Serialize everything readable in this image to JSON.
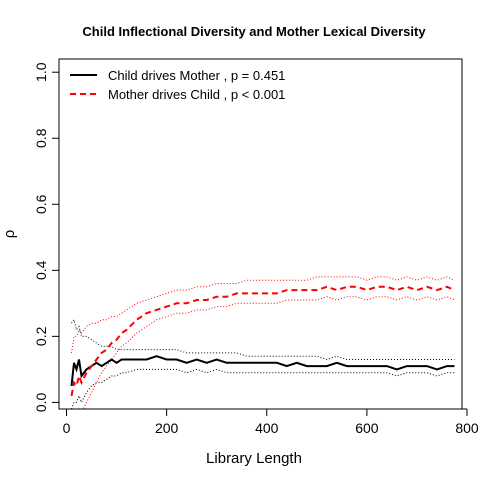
{
  "chart_data": {
    "type": "line",
    "title": "Child Inflectional Diversity and Mother Lexical Diversity",
    "xlabel": "Library Length",
    "ylabel": "ρ",
    "xlim": [
      -15,
      790
    ],
    "ylim": [
      -0.02,
      1.04
    ],
    "xticks": [
      0,
      200,
      400,
      600,
      800
    ],
    "yticks": [
      0.0,
      0.2,
      0.4,
      0.6,
      0.8,
      1.0
    ],
    "xtick_labels": [
      "0",
      "200",
      "400",
      "600",
      "800"
    ],
    "ytick_labels": [
      "0.0",
      "0.2",
      "0.4",
      "0.6",
      "0.8",
      "1.0"
    ],
    "grid": false,
    "legend_position": "top-left",
    "series": [
      {
        "name": "Child drives Mother , p = 0.451",
        "color": "#000000",
        "line_style": "solid",
        "bands": "dotted",
        "x": [
          10,
          15,
          20,
          25,
          30,
          40,
          50,
          60,
          70,
          80,
          90,
          100,
          110,
          120,
          140,
          160,
          180,
          200,
          220,
          240,
          260,
          280,
          300,
          320,
          340,
          360,
          380,
          400,
          420,
          440,
          460,
          480,
          500,
          520,
          540,
          560,
          580,
          600,
          620,
          640,
          660,
          680,
          700,
          720,
          740,
          760,
          775
        ],
        "y": [
          0.05,
          0.12,
          0.1,
          0.13,
          0.08,
          0.1,
          0.11,
          0.12,
          0.11,
          0.12,
          0.13,
          0.12,
          0.13,
          0.13,
          0.13,
          0.13,
          0.14,
          0.13,
          0.13,
          0.12,
          0.13,
          0.12,
          0.13,
          0.12,
          0.12,
          0.12,
          0.12,
          0.12,
          0.12,
          0.11,
          0.12,
          0.11,
          0.11,
          0.11,
          0.12,
          0.11,
          0.11,
          0.11,
          0.11,
          0.11,
          0.1,
          0.11,
          0.11,
          0.11,
          0.1,
          0.11,
          0.11
        ],
        "lower": [
          -0.02,
          0.0,
          0.0,
          0.02,
          0.0,
          0.03,
          0.05,
          0.06,
          0.06,
          0.07,
          0.08,
          0.08,
          0.09,
          0.09,
          0.1,
          0.1,
          0.1,
          0.1,
          0.1,
          0.09,
          0.1,
          0.09,
          0.1,
          0.09,
          0.09,
          0.09,
          0.09,
          0.09,
          0.09,
          0.09,
          0.09,
          0.09,
          0.09,
          0.09,
          0.09,
          0.09,
          0.09,
          0.09,
          0.09,
          0.09,
          0.08,
          0.09,
          0.09,
          0.09,
          0.08,
          0.09,
          0.09
        ],
        "upper": [
          0.24,
          0.25,
          0.22,
          0.23,
          0.2,
          0.2,
          0.19,
          0.18,
          0.17,
          0.17,
          0.17,
          0.16,
          0.16,
          0.16,
          0.16,
          0.16,
          0.16,
          0.16,
          0.16,
          0.15,
          0.15,
          0.15,
          0.15,
          0.15,
          0.15,
          0.14,
          0.14,
          0.14,
          0.14,
          0.14,
          0.14,
          0.14,
          0.14,
          0.13,
          0.14,
          0.13,
          0.13,
          0.13,
          0.13,
          0.13,
          0.13,
          0.13,
          0.13,
          0.13,
          0.13,
          0.13,
          0.13
        ]
      },
      {
        "name": "Mother drives Child , p < 0.001",
        "color": "#ff0000",
        "line_style": "dashed",
        "bands": "dotted",
        "x": [
          10,
          15,
          20,
          25,
          30,
          40,
          50,
          60,
          70,
          80,
          90,
          100,
          110,
          120,
          140,
          160,
          180,
          200,
          220,
          240,
          260,
          280,
          300,
          320,
          340,
          360,
          380,
          400,
          420,
          440,
          460,
          480,
          500,
          520,
          540,
          560,
          580,
          600,
          620,
          640,
          660,
          680,
          700,
          720,
          740,
          760,
          775
        ],
        "y": [
          0.02,
          0.06,
          0.05,
          0.08,
          0.06,
          0.09,
          0.11,
          0.13,
          0.15,
          0.16,
          0.18,
          0.19,
          0.21,
          0.22,
          0.25,
          0.27,
          0.28,
          0.29,
          0.3,
          0.3,
          0.31,
          0.31,
          0.32,
          0.32,
          0.33,
          0.33,
          0.33,
          0.33,
          0.33,
          0.34,
          0.34,
          0.34,
          0.34,
          0.35,
          0.34,
          0.35,
          0.35,
          0.34,
          0.35,
          0.35,
          0.34,
          0.35,
          0.34,
          0.35,
          0.34,
          0.35,
          0.34
        ],
        "lower": [
          -0.05,
          -0.04,
          -0.05,
          -0.02,
          -0.03,
          0.0,
          0.03,
          0.06,
          0.09,
          0.11,
          0.13,
          0.15,
          0.17,
          0.18,
          0.21,
          0.23,
          0.25,
          0.26,
          0.27,
          0.27,
          0.28,
          0.28,
          0.29,
          0.29,
          0.3,
          0.3,
          0.3,
          0.3,
          0.3,
          0.31,
          0.31,
          0.31,
          0.31,
          0.32,
          0.31,
          0.32,
          0.32,
          0.31,
          0.32,
          0.32,
          0.31,
          0.32,
          0.31,
          0.32,
          0.31,
          0.32,
          0.31
        ],
        "upper": [
          0.15,
          0.2,
          0.2,
          0.22,
          0.21,
          0.23,
          0.24,
          0.24,
          0.25,
          0.25,
          0.26,
          0.26,
          0.27,
          0.28,
          0.3,
          0.31,
          0.32,
          0.33,
          0.34,
          0.34,
          0.35,
          0.35,
          0.36,
          0.36,
          0.36,
          0.37,
          0.37,
          0.37,
          0.37,
          0.37,
          0.37,
          0.37,
          0.38,
          0.38,
          0.38,
          0.38,
          0.38,
          0.37,
          0.38,
          0.38,
          0.37,
          0.38,
          0.37,
          0.38,
          0.37,
          0.38,
          0.37
        ]
      }
    ]
  }
}
